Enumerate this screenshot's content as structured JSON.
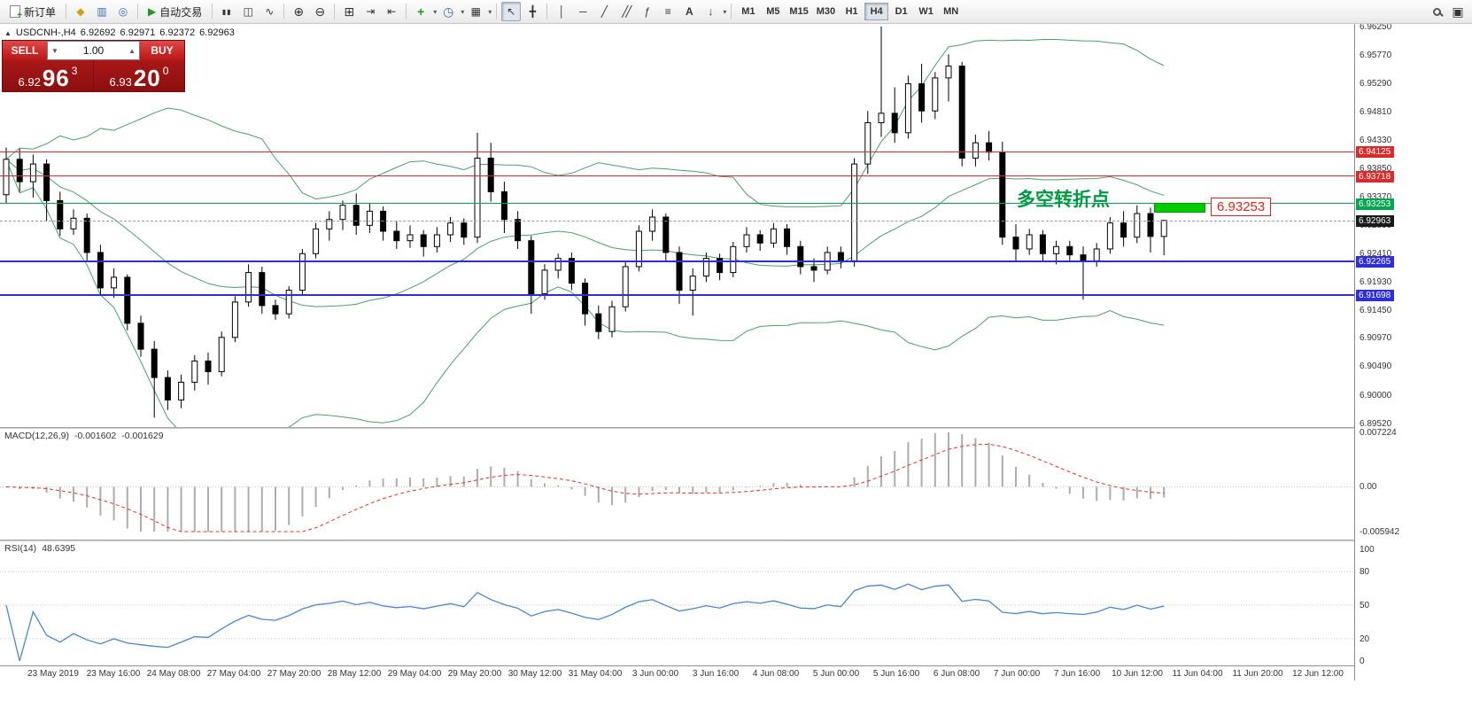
{
  "toolbar": {
    "new_order_label": "新订单",
    "auto_trading_label": "自动交易",
    "icons": {
      "market_watch": "◆",
      "data_window": "▥",
      "navigator": "◎",
      "auto_trading": "▶",
      "bar_chart": "▮▮",
      "candle_chart": "◫",
      "line_chart": "∿",
      "zoom_in": "⊕",
      "zoom_out": "⊖",
      "tile_windows": "⊞",
      "auto_scroll": "⇥",
      "chart_shift": "⇤",
      "indicators": "+",
      "periods": "◷",
      "template": "▦",
      "cursor": "↖",
      "crosshair": "╋",
      "vertical_line": "│",
      "horizontal_line": "─",
      "trendline": "╱",
      "channel": "╱╱",
      "fibonacci": "ƒ",
      "shapes": "≡",
      "text_tool": "A",
      "arrows_tool": "↓",
      "caret": "▾",
      "new_window": "▣",
      "spinner_down": "▼",
      "spinner_up": "▲"
    },
    "timeframes": [
      "M1",
      "M5",
      "M15",
      "M30",
      "H1",
      "H4",
      "D1",
      "W1",
      "MN"
    ],
    "active_timeframe": "H4"
  },
  "chart": {
    "header": {
      "toggle": "▲",
      "symbol": "USDCNH-,H4",
      "open": "6.92692",
      "high": "6.92971",
      "low": "6.92372",
      "close": "6.92963"
    },
    "trade_panel": {
      "sell_label": "SELL",
      "buy_label": "BUY",
      "volume": "1.00",
      "sell_small": "6.92",
      "sell_big": "96",
      "sell_sup": "3",
      "buy_small": "6.93",
      "buy_big": "20",
      "buy_sup": "0"
    },
    "annotation": {
      "text": "多空转折点",
      "price_label": "6.93253"
    },
    "y_axis_ticks": [
      "6.96250",
      "6.95770",
      "6.95290",
      "6.94810",
      "6.94330",
      "6.93850",
      "6.93370",
      "6.92890",
      "6.92410",
      "6.91930",
      "6.91450",
      "6.90970",
      "6.90490",
      "6.90000",
      "6.89520"
    ],
    "levels": [
      {
        "label": "6.94125",
        "price": 6.94125,
        "color": "#d92b2b",
        "thickness": 1
      },
      {
        "label": "6.93718",
        "price": 6.93718,
        "color": "#d92b2b",
        "thickness": 1
      },
      {
        "label": "6.93253",
        "price": 6.93253,
        "color": "#00a651",
        "thickness": 1
      },
      {
        "label": "6.92265",
        "price": 6.92265,
        "color": "#2d2dd9",
        "thickness": 2
      },
      {
        "label": "6.91698",
        "price": 6.91698,
        "color": "#2d2dd9",
        "thickness": 2
      }
    ],
    "current_price": {
      "label": "6.92963",
      "price": 6.92963,
      "color": "#1a1a1a"
    }
  },
  "macd_panel": {
    "label": "MACD(12,26,9)",
    "value_main": "-0.001602",
    "value_signal": "-0.001629",
    "axis": [
      "0.007224",
      "0.00",
      "-0.005942"
    ]
  },
  "rsi_panel": {
    "label": "RSI(14)",
    "value": "48.6395",
    "axis": [
      "100",
      "80",
      "50",
      "20",
      "0"
    ]
  },
  "time_axis": [
    "23 May 2019",
    "23 May 16:00",
    "24 May 08:00",
    "27 May 04:00",
    "27 May 20:00",
    "28 May 12:00",
    "29 May 04:00",
    "29 May 20:00",
    "30 May 12:00",
    "31 May 04:00",
    "3 Jun 00:00",
    "3 Jun 16:00",
    "4 Jun 08:00",
    "5 Jun 00:00",
    "5 Jun 16:00",
    "6 Jun 08:00",
    "7 Jun 00:00",
    "7 Jun 16:00",
    "10 Jun 12:00",
    "11 Jun 04:00",
    "11 Jun 20:00",
    "12 Jun 12:00"
  ],
  "chart_data": {
    "type": "candlestick",
    "symbol": "USDCNH",
    "timeframe": "H4",
    "bollinger_period": 20,
    "bollinger_deviation": 2,
    "macd_params": [
      12,
      26,
      9
    ],
    "rsi_period": 14,
    "ylim": [
      6.8952,
      6.9625
    ],
    "candles": [
      [
        6.934,
        6.942,
        6.9325,
        6.94
      ],
      [
        6.94,
        6.9418,
        6.9345,
        6.9362
      ],
      [
        6.9362,
        6.9408,
        6.9335,
        6.9392
      ],
      [
        6.9392,
        6.94,
        6.9296,
        6.933
      ],
      [
        6.933,
        6.9345,
        6.927,
        6.9282
      ],
      [
        6.9282,
        6.9315,
        6.9272,
        6.93
      ],
      [
        6.93,
        6.9308,
        6.9228,
        6.9242
      ],
      [
        6.9242,
        6.9255,
        6.917,
        6.9182
      ],
      [
        6.9182,
        6.9215,
        6.9165,
        6.92
      ],
      [
        6.92,
        6.9205,
        6.911,
        6.9122
      ],
      [
        6.9122,
        6.9135,
        6.9065,
        6.9078
      ],
      [
        6.9078,
        6.9092,
        6.8962,
        6.903
      ],
      [
        6.903,
        6.9042,
        6.8975,
        6.8992
      ],
      [
        6.8992,
        6.9035,
        6.8978,
        6.9022
      ],
      [
        6.9022,
        6.9068,
        6.9008,
        6.9058
      ],
      [
        6.9058,
        6.9072,
        6.9018,
        6.904
      ],
      [
        6.904,
        6.9108,
        6.9032,
        6.9098
      ],
      [
        6.9098,
        6.9168,
        6.909,
        6.9158
      ],
      [
        6.9158,
        6.9222,
        6.915,
        6.9208
      ],
      [
        6.9208,
        6.9218,
        6.9138,
        6.9152
      ],
      [
        6.9152,
        6.9162,
        6.9128,
        6.9138
      ],
      [
        6.9138,
        6.9185,
        6.913,
        6.9178
      ],
      [
        6.9178,
        6.9248,
        6.917,
        6.924
      ],
      [
        6.924,
        6.9292,
        6.9232,
        6.9282
      ],
      [
        6.9282,
        6.9312,
        6.9262,
        6.9298
      ],
      [
        6.9298,
        6.933,
        6.928,
        6.9322
      ],
      [
        6.9322,
        6.9342,
        6.9272,
        6.9288
      ],
      [
        6.9288,
        6.9325,
        6.9275,
        6.9312
      ],
      [
        6.9312,
        6.932,
        6.9262,
        6.9278
      ],
      [
        6.9278,
        6.9295,
        6.9248,
        6.9262
      ],
      [
        6.9262,
        6.9288,
        6.925,
        6.9272
      ],
      [
        6.9272,
        6.928,
        6.9235,
        6.9252
      ],
      [
        6.9252,
        6.9285,
        6.9242,
        6.9272
      ],
      [
        6.9272,
        6.9302,
        6.926,
        6.9292
      ],
      [
        6.9292,
        6.93,
        6.9255,
        6.9268
      ],
      [
        6.9268,
        6.9445,
        6.9258,
        6.9402
      ],
      [
        6.9402,
        6.9428,
        6.9328,
        6.9345
      ],
      [
        6.9345,
        6.9362,
        6.9275,
        6.9298
      ],
      [
        6.9298,
        6.9312,
        6.9248,
        6.9262
      ],
      [
        6.9262,
        6.927,
        6.9138,
        6.9172
      ],
      [
        6.9172,
        6.9222,
        6.9162,
        6.9212
      ],
      [
        6.9212,
        6.924,
        6.9198,
        6.9232
      ],
      [
        6.9232,
        6.9242,
        6.9178,
        6.919
      ],
      [
        6.919,
        6.9198,
        6.9118,
        6.9138
      ],
      [
        6.9138,
        6.9152,
        6.9095,
        6.9108
      ],
      [
        6.9108,
        6.916,
        6.9098,
        6.915
      ],
      [
        6.915,
        6.9228,
        6.9142,
        6.9218
      ],
      [
        6.9218,
        6.9288,
        6.921,
        6.9278
      ],
      [
        6.9278,
        6.9315,
        6.9262,
        6.9302
      ],
      [
        6.9302,
        6.9308,
        6.9228,
        6.9242
      ],
      [
        6.9242,
        6.9252,
        6.9155,
        6.9178
      ],
      [
        6.9178,
        6.9215,
        6.9135,
        6.9202
      ],
      [
        6.9202,
        6.9242,
        6.9192,
        6.9232
      ],
      [
        6.9232,
        6.924,
        6.9195,
        6.9208
      ],
      [
        6.9208,
        6.926,
        6.92,
        6.9252
      ],
      [
        6.9252,
        6.9285,
        6.9242,
        6.9272
      ],
      [
        6.9272,
        6.928,
        6.9245,
        6.9258
      ],
      [
        6.9258,
        6.9292,
        6.925,
        6.9282
      ],
      [
        6.9282,
        6.929,
        6.9238,
        6.9252
      ],
      [
        6.9252,
        6.9262,
        6.9205,
        6.9218
      ],
      [
        6.9218,
        6.9232,
        6.9192,
        6.9212
      ],
      [
        6.9212,
        6.9252,
        6.9205,
        6.9242
      ],
      [
        6.9242,
        6.9252,
        6.9215,
        6.9228
      ],
      [
        6.9228,
        6.9402,
        6.9218,
        6.9392
      ],
      [
        6.9392,
        6.9482,
        6.9375,
        6.9462
      ],
      [
        6.9462,
        6.9625,
        6.9438,
        6.9478
      ],
      [
        6.9478,
        6.9522,
        6.9428,
        6.9445
      ],
      [
        6.9445,
        6.9542,
        6.9435,
        6.9528
      ],
      [
        6.9528,
        6.9562,
        6.9462,
        6.9482
      ],
      [
        6.9482,
        6.9548,
        6.9468,
        6.9538
      ],
      [
        6.9538,
        6.9578,
        6.9498,
        6.9558
      ],
      [
        6.9558,
        6.9565,
        6.9388,
        6.9402
      ],
      [
        6.9402,
        6.9442,
        6.9388,
        6.9428
      ],
      [
        6.9428,
        6.9448,
        6.9398,
        6.9412
      ],
      [
        6.9412,
        6.943,
        6.9255,
        6.9268
      ],
      [
        6.9268,
        6.929,
        6.9228,
        6.9248
      ],
      [
        6.9248,
        6.9282,
        6.9238,
        6.9272
      ],
      [
        6.9272,
        6.928,
        6.9228,
        6.924
      ],
      [
        6.924,
        6.9262,
        6.9222,
        6.9252
      ],
      [
        6.9252,
        6.9262,
        6.9228,
        6.9238
      ],
      [
        6.9238,
        6.9252,
        6.9162,
        6.9228
      ],
      [
        6.9228,
        6.9258,
        6.9218,
        6.9248
      ],
      [
        6.9248,
        6.9302,
        6.924,
        6.9292
      ],
      [
        6.9292,
        6.9312,
        6.9252,
        6.9268
      ],
      [
        6.9268,
        6.9322,
        6.9258,
        6.9308
      ],
      [
        6.9308,
        6.9318,
        6.9242,
        6.92692
      ],
      [
        6.92692,
        6.92971,
        6.92372,
        6.92963
      ]
    ]
  }
}
